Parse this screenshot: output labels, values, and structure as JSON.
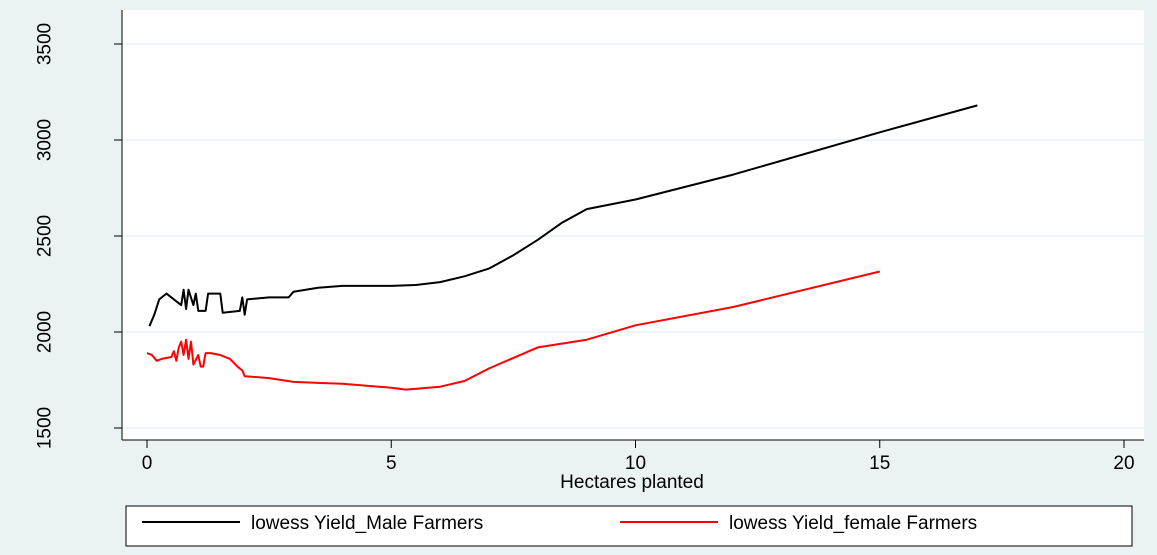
{
  "chart_data": {
    "type": "line",
    "title": "",
    "xlabel": "Hectares planted",
    "ylabel": "",
    "xlim": [
      0,
      20
    ],
    "ylim": [
      1500,
      3500
    ],
    "xticks": [
      "0",
      "5",
      "10",
      "15",
      "20"
    ],
    "yticks": [
      "1500",
      "2000",
      "2500",
      "3000",
      "3500"
    ],
    "grid": true,
    "legend_position": "bottom",
    "colors": {
      "outer_background": "#eaf2f3",
      "plot_background": "#ffffff",
      "grid": "#eaf2f3"
    },
    "series": [
      {
        "name": "lowess Yield_Male Farmers",
        "color": "#000000",
        "points": [
          [
            0.05,
            2030
          ],
          [
            0.15,
            2090
          ],
          [
            0.25,
            2170
          ],
          [
            0.3,
            2180
          ],
          [
            0.4,
            2200
          ],
          [
            0.5,
            2180
          ],
          [
            0.6,
            2160
          ],
          [
            0.7,
            2140
          ],
          [
            0.75,
            2220
          ],
          [
            0.8,
            2120
          ],
          [
            0.85,
            2220
          ],
          [
            0.95,
            2140
          ],
          [
            1.0,
            2200
          ],
          [
            1.05,
            2110
          ],
          [
            1.2,
            2110
          ],
          [
            1.25,
            2200
          ],
          [
            1.5,
            2200
          ],
          [
            1.55,
            2100
          ],
          [
            1.9,
            2110
          ],
          [
            1.95,
            2180
          ],
          [
            2.0,
            2090
          ],
          [
            2.05,
            2170
          ],
          [
            2.5,
            2180
          ],
          [
            2.9,
            2180
          ],
          [
            3.0,
            2210
          ],
          [
            3.5,
            2230
          ],
          [
            4.0,
            2240
          ],
          [
            5.0,
            2240
          ],
          [
            5.5,
            2245
          ],
          [
            6.0,
            2260
          ],
          [
            6.5,
            2290
          ],
          [
            7.0,
            2330
          ],
          [
            7.5,
            2400
          ],
          [
            8.0,
            2480
          ],
          [
            8.5,
            2570
          ],
          [
            9.0,
            2640
          ],
          [
            10.0,
            2690
          ],
          [
            12.0,
            2820
          ],
          [
            15.0,
            3040
          ],
          [
            17.0,
            3180
          ]
        ]
      },
      {
        "name": "lowess Yield_female Farmers",
        "color": "#ff0000",
        "points": [
          [
            0.0,
            1890
          ],
          [
            0.1,
            1880
          ],
          [
            0.2,
            1850
          ],
          [
            0.3,
            1860
          ],
          [
            0.5,
            1870
          ],
          [
            0.55,
            1900
          ],
          [
            0.6,
            1850
          ],
          [
            0.65,
            1920
          ],
          [
            0.7,
            1950
          ],
          [
            0.75,
            1880
          ],
          [
            0.8,
            1960
          ],
          [
            0.85,
            1860
          ],
          [
            0.9,
            1950
          ],
          [
            0.95,
            1830
          ],
          [
            1.05,
            1880
          ],
          [
            1.1,
            1820
          ],
          [
            1.15,
            1820
          ],
          [
            1.2,
            1890
          ],
          [
            1.3,
            1890
          ],
          [
            1.5,
            1880
          ],
          [
            1.7,
            1860
          ],
          [
            1.85,
            1820
          ],
          [
            1.95,
            1800
          ],
          [
            2.0,
            1770
          ],
          [
            2.5,
            1760
          ],
          [
            3.0,
            1740
          ],
          [
            3.5,
            1735
          ],
          [
            4.0,
            1730
          ],
          [
            5.0,
            1710
          ],
          [
            5.3,
            1700
          ],
          [
            6.0,
            1715
          ],
          [
            6.5,
            1745
          ],
          [
            7.0,
            1810
          ],
          [
            8.0,
            1920
          ],
          [
            9.0,
            1960
          ],
          [
            10.0,
            2035
          ],
          [
            12.0,
            2130
          ],
          [
            15.0,
            2315
          ]
        ]
      }
    ]
  }
}
